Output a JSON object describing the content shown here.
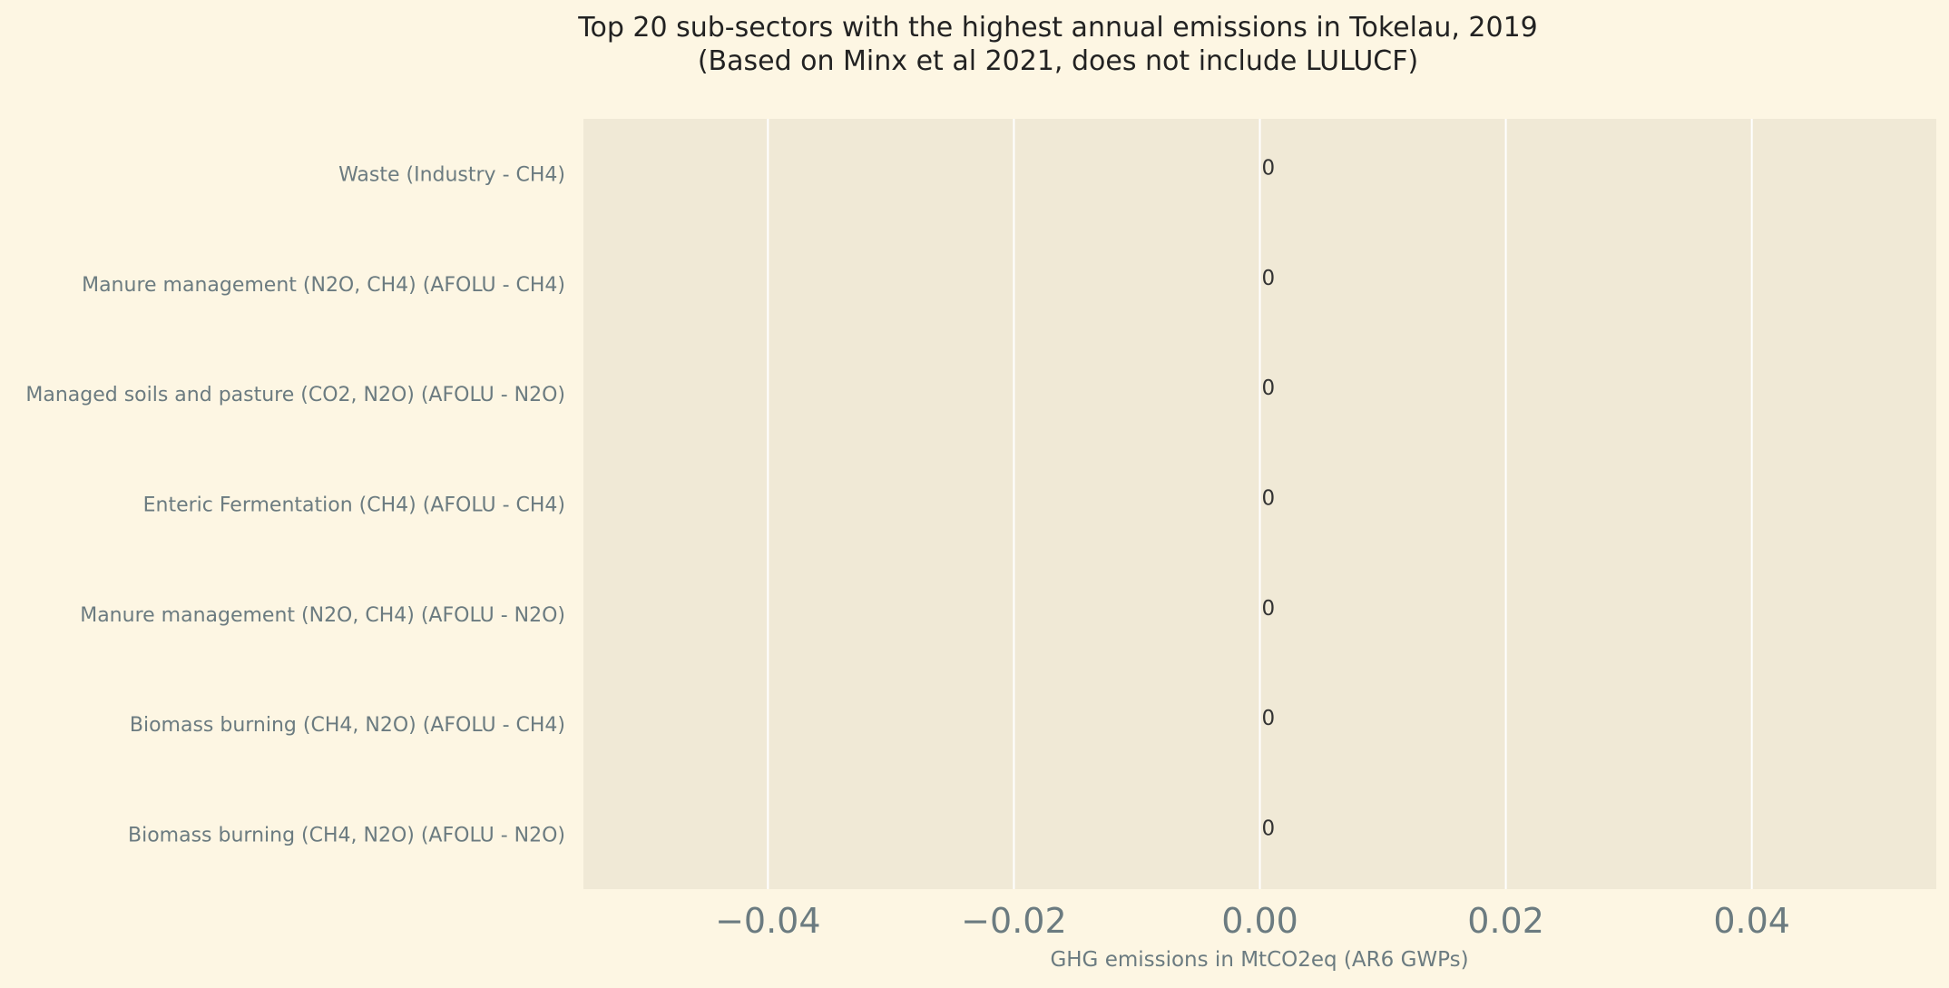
{
  "chart_data": {
    "type": "bar",
    "orientation": "horizontal",
    "title": [
      "Top 20 sub-sectors with the highest annual emissions in Tokelau, 2019",
      "(Based on Minx et al 2021, does not include LULUCF)"
    ],
    "categories": [
      "Waste (Industry - CH4)",
      "Manure management (N2O, CH4) (AFOLU - CH4)",
      "Managed soils and pasture (CO2, N2O) (AFOLU - N2O)",
      "Enteric Fermentation (CH4) (AFOLU - CH4)",
      "Manure management (N2O, CH4) (AFOLU - N2O)",
      "Biomass burning (CH4, N2O) (AFOLU - CH4)",
      "Biomass burning (CH4, N2O) (AFOLU - N2O)"
    ],
    "values": [
      0,
      0,
      0,
      0,
      0,
      0,
      0
    ],
    "data_labels": [
      "0",
      "0",
      "0",
      "0",
      "0",
      "0",
      "0"
    ],
    "xlabel": "GHG emissions in MtCO2eq (AR6 GWPs)",
    "ylabel": "",
    "xlim": [
      -0.055,
      0.055
    ],
    "xticks": [
      -0.04,
      -0.02,
      0.0,
      0.02,
      0.04
    ],
    "xtick_labels": [
      "−0.04",
      "−0.02",
      "0.00",
      "0.02",
      "0.04"
    ],
    "grid": true,
    "colors": {
      "background": "#fdf6e3",
      "plot_background": "#f0e9d6",
      "grid": "#ffffff",
      "bar": "#e07b39"
    }
  }
}
